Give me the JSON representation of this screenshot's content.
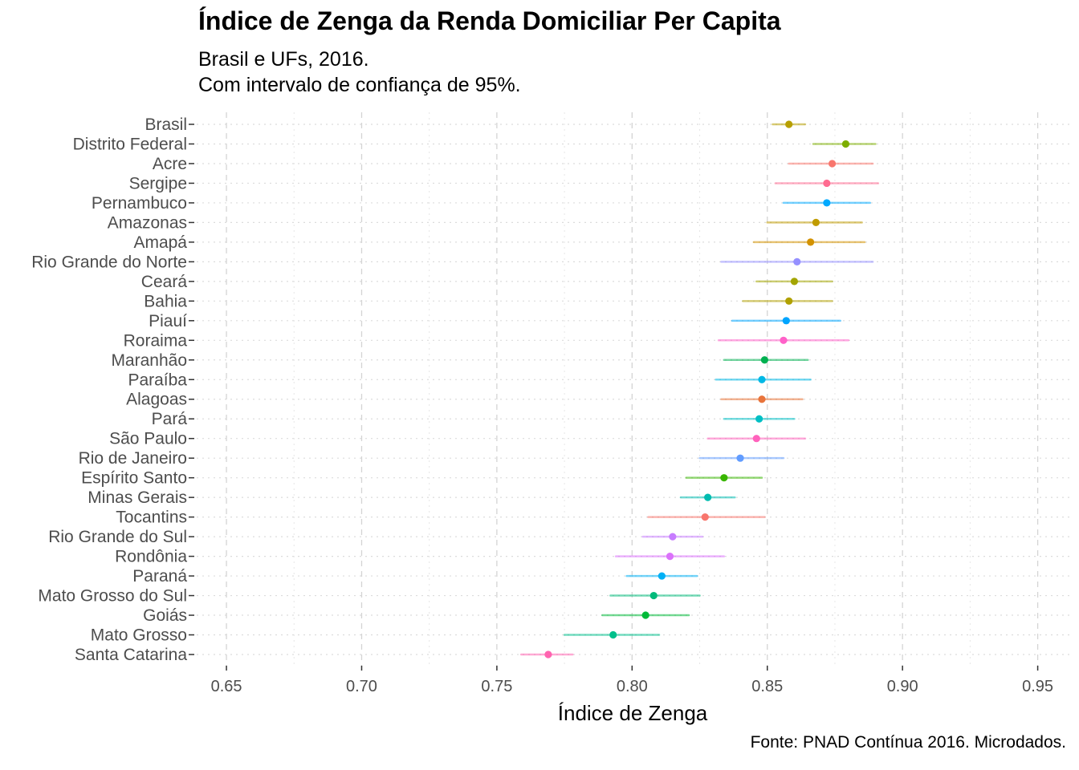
{
  "chart_data": {
    "type": "scatter",
    "title": "Índice de Zenga da Renda Domiciliar Per Capita",
    "subtitle_lines": [
      "Brasil e UFs, 2016.",
      "Com intervalo de confiança de 95%."
    ],
    "caption": "Fonte: PNAD Contínua 2016. Microdados.",
    "xlabel": "Índice de Zenga",
    "ylabel": "",
    "xlim": [
      0.639,
      0.962
    ],
    "x_ticks": [
      0.65,
      0.7,
      0.75,
      0.8,
      0.85,
      0.9,
      0.95
    ],
    "x_tick_labels": [
      "0.65",
      "0.70",
      "0.75",
      "0.80",
      "0.85",
      "0.90",
      "0.95"
    ],
    "grid": true,
    "legend": "none",
    "error_bars": "95% confidence interval",
    "points": [
      {
        "label": "Brasil",
        "value": 0.858,
        "lower": 0.852,
        "upper": 0.864,
        "color": "#B79F00"
      },
      {
        "label": "Distrito Federal",
        "value": 0.879,
        "lower": 0.867,
        "upper": 0.89,
        "color": "#7CAE00"
      },
      {
        "label": "Acre",
        "value": 0.874,
        "lower": 0.858,
        "upper": 0.889,
        "color": "#F8766D"
      },
      {
        "label": "Sergipe",
        "value": 0.872,
        "lower": 0.853,
        "upper": 0.891,
        "color": "#FF6C91"
      },
      {
        "label": "Pernambuco",
        "value": 0.872,
        "lower": 0.856,
        "upper": 0.888,
        "color": "#00A9FF"
      },
      {
        "label": "Amazonas",
        "value": 0.868,
        "lower": 0.85,
        "upper": 0.885,
        "color": "#C09B00"
      },
      {
        "label": "Amapá",
        "value": 0.866,
        "lower": 0.845,
        "upper": 0.886,
        "color": "#D39200"
      },
      {
        "label": "Rio Grande do Norte",
        "value": 0.861,
        "lower": 0.833,
        "upper": 0.889,
        "color": "#9590FF"
      },
      {
        "label": "Ceará",
        "value": 0.86,
        "lower": 0.846,
        "upper": 0.874,
        "color": "#A3A500"
      },
      {
        "label": "Bahia",
        "value": 0.858,
        "lower": 0.841,
        "upper": 0.874,
        "color": "#B0A100"
      },
      {
        "label": "Piauí",
        "value": 0.857,
        "lower": 0.837,
        "upper": 0.877,
        "color": "#00A5FF"
      },
      {
        "label": "Roraima",
        "value": 0.856,
        "lower": 0.832,
        "upper": 0.88,
        "color": "#FF61C9"
      },
      {
        "label": "Maranhão",
        "value": 0.849,
        "lower": 0.834,
        "upper": 0.865,
        "color": "#00B050"
      },
      {
        "label": "Paraíba",
        "value": 0.848,
        "lower": 0.831,
        "upper": 0.866,
        "color": "#00B8E5"
      },
      {
        "label": "Alagoas",
        "value": 0.848,
        "lower": 0.833,
        "upper": 0.863,
        "color": "#E8743B"
      },
      {
        "label": "Pará",
        "value": 0.847,
        "lower": 0.834,
        "upper": 0.86,
        "color": "#00BFC4"
      },
      {
        "label": "São Paulo",
        "value": 0.846,
        "lower": 0.828,
        "upper": 0.864,
        "color": "#FF62BC"
      },
      {
        "label": "Rio de Janeiro",
        "value": 0.84,
        "lower": 0.825,
        "upper": 0.856,
        "color": "#619CFF"
      },
      {
        "label": "Espírito Santo",
        "value": 0.834,
        "lower": 0.82,
        "upper": 0.848,
        "color": "#39B600"
      },
      {
        "label": "Minas Gerais",
        "value": 0.828,
        "lower": 0.818,
        "upper": 0.838,
        "color": "#00BCB0"
      },
      {
        "label": "Tocantins",
        "value": 0.827,
        "lower": 0.806,
        "upper": 0.849,
        "color": "#F8766D"
      },
      {
        "label": "Rio Grande do Sul",
        "value": 0.815,
        "lower": 0.804,
        "upper": 0.826,
        "color": "#C77CFF"
      },
      {
        "label": "Rondônia",
        "value": 0.814,
        "lower": 0.794,
        "upper": 0.834,
        "color": "#DB72FB"
      },
      {
        "label": "Paraná",
        "value": 0.811,
        "lower": 0.798,
        "upper": 0.824,
        "color": "#00B0F6"
      },
      {
        "label": "Mato Grosso do Sul",
        "value": 0.808,
        "lower": 0.792,
        "upper": 0.825,
        "color": "#00BA7A"
      },
      {
        "label": "Goiás",
        "value": 0.805,
        "lower": 0.789,
        "upper": 0.821,
        "color": "#00BA38"
      },
      {
        "label": "Mato Grosso",
        "value": 0.793,
        "lower": 0.775,
        "upper": 0.81,
        "color": "#00C08B"
      },
      {
        "label": "Santa Catarina",
        "value": 0.769,
        "lower": 0.759,
        "upper": 0.778,
        "color": "#FF64B0"
      }
    ]
  }
}
